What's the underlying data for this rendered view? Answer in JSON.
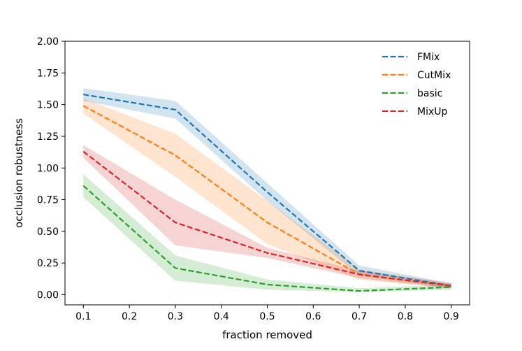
{
  "chart_data": {
    "type": "line",
    "title": "",
    "xlabel": "fraction removed",
    "ylabel": "occlusion robustness",
    "x": [
      0.1,
      0.3,
      0.5,
      0.7,
      0.9
    ],
    "xlim": [
      0.06,
      0.94
    ],
    "ylim": [
      -0.08,
      2.0
    ],
    "xticks": [
      0.1,
      0.2,
      0.3,
      0.4,
      0.5,
      0.6,
      0.7,
      0.8,
      0.9
    ],
    "xtick_labels": [
      "0.1",
      "0.2",
      "0.3",
      "0.4",
      "0.5",
      "0.6",
      "0.7",
      "0.8",
      "0.9"
    ],
    "yticks": [
      0.0,
      0.25,
      0.5,
      0.75,
      1.0,
      1.25,
      1.5,
      1.75,
      2.0
    ],
    "ytick_labels": [
      "0.00",
      "0.25",
      "0.50",
      "0.75",
      "1.00",
      "1.25",
      "1.50",
      "1.75",
      "2.00"
    ],
    "grid": false,
    "legend_position": "top-right",
    "line_style": "dashed",
    "series": [
      {
        "name": "FMix",
        "color": "#1f77b4",
        "values": [
          1.58,
          1.46,
          0.81,
          0.19,
          0.07
        ],
        "lower": [
          1.53,
          1.39,
          0.74,
          0.15,
          0.05
        ],
        "upper": [
          1.63,
          1.53,
          0.88,
          0.23,
          0.09
        ]
      },
      {
        "name": "CutMix",
        "color": "#ff7f0e",
        "values": [
          1.49,
          1.1,
          0.57,
          0.16,
          0.07
        ],
        "lower": [
          1.43,
          0.93,
          0.4,
          0.12,
          0.05
        ],
        "upper": [
          1.55,
          1.27,
          0.74,
          0.2,
          0.09
        ]
      },
      {
        "name": "basic",
        "color": "#2ca02c",
        "values": [
          0.86,
          0.21,
          0.08,
          0.03,
          0.06
        ],
        "lower": [
          0.77,
          0.11,
          0.04,
          0.02,
          0.04
        ],
        "upper": [
          0.95,
          0.31,
          0.12,
          0.05,
          0.08
        ]
      },
      {
        "name": "MixUp",
        "color": "#d62728",
        "values": [
          1.13,
          0.57,
          0.33,
          0.16,
          0.07
        ],
        "lower": [
          1.08,
          0.39,
          0.29,
          0.13,
          0.05
        ],
        "upper": [
          1.18,
          0.75,
          0.37,
          0.19,
          0.09
        ]
      }
    ]
  }
}
